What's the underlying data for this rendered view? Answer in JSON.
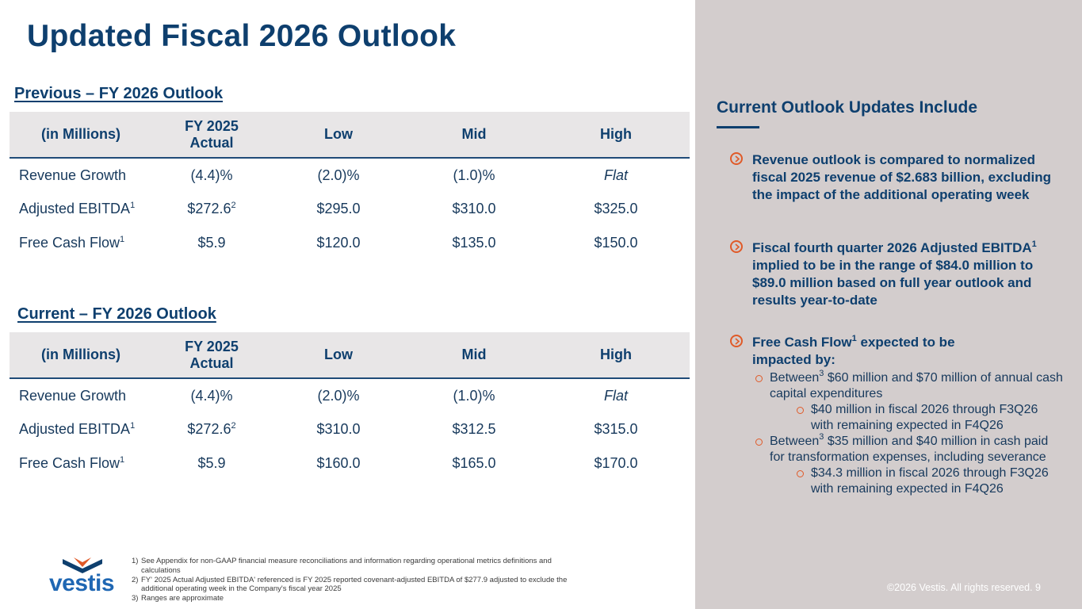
{
  "title": "Updated Fiscal 2026 Outlook",
  "previous": {
    "heading": "Previous – FY 2026 Outlook",
    "headers": [
      "(in Millions)",
      "FY 2025 Actual",
      "Low",
      "Mid",
      "High"
    ],
    "rows": [
      {
        "label": "Revenue Growth",
        "sup": "",
        "actual": "(4.4)%",
        "actual_sup": "",
        "low": "(2.0)%",
        "mid": "(1.0)%",
        "high": "Flat"
      },
      {
        "label": "Adjusted EBITDA",
        "sup": "1",
        "actual": "$272.6",
        "actual_sup": "2",
        "low": "$295.0",
        "mid": "$310.0",
        "high": "$325.0"
      },
      {
        "label": "Free Cash Flow",
        "sup": "1",
        "actual": "$5.9",
        "actual_sup": "",
        "low": "$120.0",
        "mid": "$135.0",
        "high": "$150.0"
      }
    ]
  },
  "current": {
    "heading": "Current – FY 2026 Outlook",
    "headers": [
      "(in Millions)",
      "FY 2025 Actual",
      "Low",
      "Mid",
      "High"
    ],
    "rows": [
      {
        "label": "Revenue Growth",
        "sup": "",
        "actual": "(4.4)%",
        "actual_sup": "",
        "low": "(2.0)%",
        "mid": "(1.0)%",
        "high": "Flat"
      },
      {
        "label": "Adjusted EBITDA",
        "sup": "1",
        "actual": "$272.6",
        "actual_sup": "2",
        "low": "$310.0",
        "mid": "$312.5",
        "high": "$315.0"
      },
      {
        "label": "Free Cash Flow",
        "sup": "1",
        "actual": "$5.9",
        "actual_sup": "",
        "low": "$160.0",
        "mid": "$165.0",
        "high": "$170.0"
      }
    ]
  },
  "panel": {
    "heading": "Current Outlook Updates Include",
    "bullet1": "Revenue outlook is compared to normalized fiscal 2025 revenue of $2.683 billion, excluding the impact of the additional operating week",
    "bullet2_a": "Fiscal fourth quarter 2026 Adjusted EBITDA",
    "bullet2_sup": "1",
    "bullet2_b": " implied to be in the range of $84.0 million to $89.0 million based on full year outlook and results year-to-date",
    "bullet3_a": "Free Cash Flow",
    "bullet3_sup": "1",
    "bullet3_b": " expected to be impacted by:",
    "sub1_a": "Between",
    "sub1_sup": "3",
    "sub1_b": " $60 million and $70 million of annual cash capital expenditures",
    "sub1_1": "$40 million in fiscal 2026 through F3Q26 with remaining expected in F4Q26",
    "sub2_a": "Between",
    "sub2_sup": "3",
    "sub2_b": " $35 million and $40 million in cash paid for transformation expenses, including severance",
    "sub2_1": "$34.3 million in fiscal 2026 through F3Q26 with remaining expected in F4Q26"
  },
  "footnotes": [
    {
      "num": "1)",
      "text": "See Appendix for non-GAAP financial measure reconciliations and information regarding operational metrics definitions and calculations"
    },
    {
      "num": "2)",
      "text": "FY' 2025 Actual Adjusted EBITDA' referenced is FY 2025 reported covenant-adjusted EBITDA of $277.9 adjusted to exclude the additional operating week in the Company's fiscal year 2025"
    },
    {
      "num": "3)",
      "text": "Ranges are approximate"
    }
  ],
  "logo": {
    "text": "vestis",
    "colors": {
      "primary": "#1f67b3",
      "dark": "#0e3f6e",
      "accent": "#e05a28"
    }
  },
  "copyright": "©2026 Vestis. All rights reserved.  9"
}
